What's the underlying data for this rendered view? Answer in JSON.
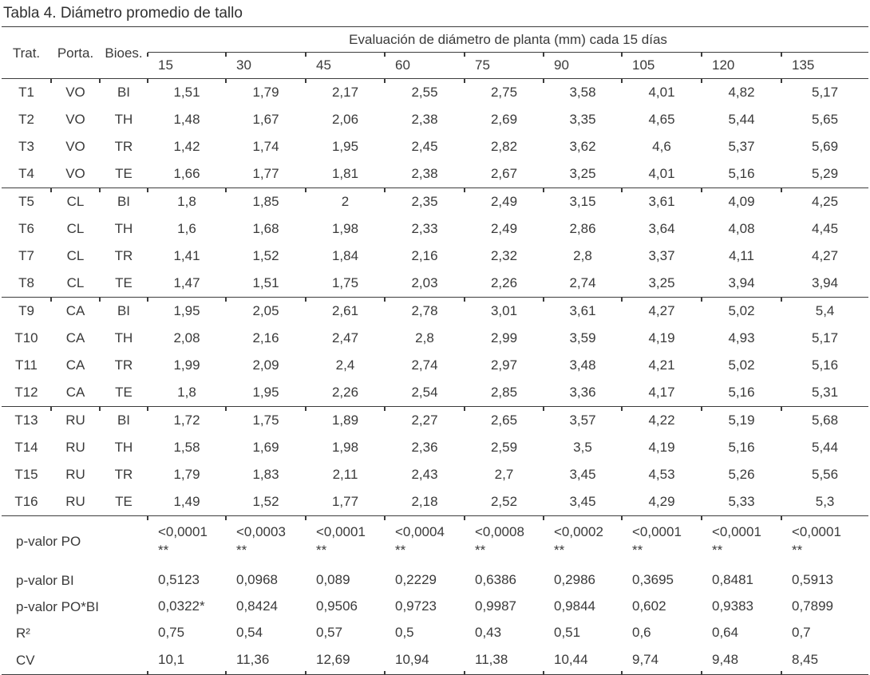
{
  "title": "Tabla 4. Diámetro promedio de tallo",
  "table": {
    "col_headers": {
      "trat": "Trat.",
      "porta": "Porta.",
      "bioes": "Bioes."
    },
    "span_header": "Evaluación de diámetro de planta (mm) cada 15 días",
    "day_columns": [
      "15",
      "30",
      "45",
      "60",
      "75",
      "90",
      "105",
      "120",
      "135"
    ],
    "rows": [
      {
        "trat": "T1",
        "porta": "VO",
        "bioes": "BI",
        "values": [
          "1,51",
          "1,79",
          "2,17",
          "2,55",
          "2,75",
          "3,58",
          "4,01",
          "4,82",
          "5,17"
        ]
      },
      {
        "trat": "T2",
        "porta": "VO",
        "bioes": "TH",
        "values": [
          "1,48",
          "1,67",
          "2,06",
          "2,38",
          "2,69",
          "3,35",
          "4,65",
          "5,44",
          "5,65"
        ]
      },
      {
        "trat": "T3",
        "porta": "VO",
        "bioes": "TR",
        "values": [
          "1,42",
          "1,74",
          "1,95",
          "2,45",
          "2,82",
          "3,62",
          "4,6",
          "5,37",
          "5,69"
        ]
      },
      {
        "trat": "T4",
        "porta": "VO",
        "bioes": "TE",
        "values": [
          "1,66",
          "1,77",
          "1,81",
          "2,38",
          "2,67",
          "3,25",
          "4,01",
          "5,16",
          "5,29"
        ]
      },
      {
        "trat": "T5",
        "porta": "CL",
        "bioes": "BI",
        "values": [
          "1,8",
          "1,85",
          "2",
          "2,35",
          "2,49",
          "3,15",
          "3,61",
          "4,09",
          "4,25"
        ]
      },
      {
        "trat": "T6",
        "porta": "CL",
        "bioes": "TH",
        "values": [
          "1,6",
          "1,68",
          "1,98",
          "2,33",
          "2,49",
          "2,86",
          "3,64",
          "4,08",
          "4,45"
        ]
      },
      {
        "trat": "T7",
        "porta": "CL",
        "bioes": "TR",
        "values": [
          "1,41",
          "1,52",
          "1,84",
          "2,16",
          "2,32",
          "2,8",
          "3,37",
          "4,11",
          "4,27"
        ]
      },
      {
        "trat": "T8",
        "porta": "CL",
        "bioes": "TE",
        "values": [
          "1,47",
          "1,51",
          "1,75",
          "2,03",
          "2,26",
          "2,74",
          "3,25",
          "3,94",
          "3,94"
        ]
      },
      {
        "trat": "T9",
        "porta": "CA",
        "bioes": "BI",
        "values": [
          "1,95",
          "2,05",
          "2,61",
          "2,78",
          "3,01",
          "3,61",
          "4,27",
          "5,02",
          "5,4"
        ]
      },
      {
        "trat": "T10",
        "porta": "CA",
        "bioes": "TH",
        "values": [
          "2,08",
          "2,16",
          "2,47",
          "2,8",
          "2,99",
          "3,59",
          "4,19",
          "4,93",
          "5,17"
        ]
      },
      {
        "trat": "T11",
        "porta": "CA",
        "bioes": "TR",
        "values": [
          "1,99",
          "2,09",
          "2,4",
          "2,74",
          "2,97",
          "3,48",
          "4,21",
          "5,02",
          "5,16"
        ]
      },
      {
        "trat": "T12",
        "porta": "CA",
        "bioes": "TE",
        "values": [
          "1,8",
          "1,95",
          "2,26",
          "2,54",
          "2,85",
          "3,36",
          "4,17",
          "5,16",
          "5,31"
        ]
      },
      {
        "trat": "T13",
        "porta": "RU",
        "bioes": "BI",
        "values": [
          "1,72",
          "1,75",
          "1,89",
          "2,27",
          "2,65",
          "3,57",
          "4,22",
          "5,19",
          "5,68"
        ]
      },
      {
        "trat": "T14",
        "porta": "RU",
        "bioes": "TH",
        "values": [
          "1,58",
          "1,69",
          "1,98",
          "2,36",
          "2,59",
          "3,5",
          "4,19",
          "5,16",
          "5,44"
        ]
      },
      {
        "trat": "T15",
        "porta": "RU",
        "bioes": "TR",
        "values": [
          "1,79",
          "1,83",
          "2,11",
          "2,43",
          "2,7",
          "3,45",
          "4,53",
          "5,26",
          "5,56"
        ]
      },
      {
        "trat": "T16",
        "porta": "RU",
        "bioes": "TE",
        "values": [
          "1,49",
          "1,52",
          "1,77",
          "2,18",
          "2,52",
          "3,45",
          "4,29",
          "5,33",
          "5,3"
        ]
      }
    ],
    "stats": [
      {
        "label": "p-valor PO",
        "values": [
          "<0,0001\n**",
          "<0,0003\n**",
          "<0,0001\n**",
          "<0,0004\n**",
          "<0,0008\n**",
          "<0,0002\n**",
          "<0,0001\n**",
          "<0,0001\n**",
          "<0,0001\n**"
        ]
      },
      {
        "label": "p-valor BI",
        "values": [
          "0,5123",
          "0,0968",
          "0,089",
          "0,2229",
          "0,6386",
          "0,2986",
          "0,3695",
          "0,8481",
          "0,5913"
        ]
      },
      {
        "label": "p-valor PO*BI",
        "values": [
          "0,0322*",
          "0,8424",
          "0,9506",
          "0,9723",
          "0,9987",
          "0,9844",
          "0,602",
          "0,9383",
          "0,7899"
        ]
      },
      {
        "label": "R²",
        "values": [
          "0,75",
          "0,54",
          "0,57",
          "0,5",
          "0,43",
          "0,51",
          "0,6",
          "0,64",
          "0,7"
        ]
      },
      {
        "label": "CV",
        "values": [
          "10,1",
          "11,36",
          "12,69",
          "10,94",
          "11,38",
          "10,44",
          "9,74",
          "9,48",
          "8,45"
        ]
      }
    ]
  }
}
